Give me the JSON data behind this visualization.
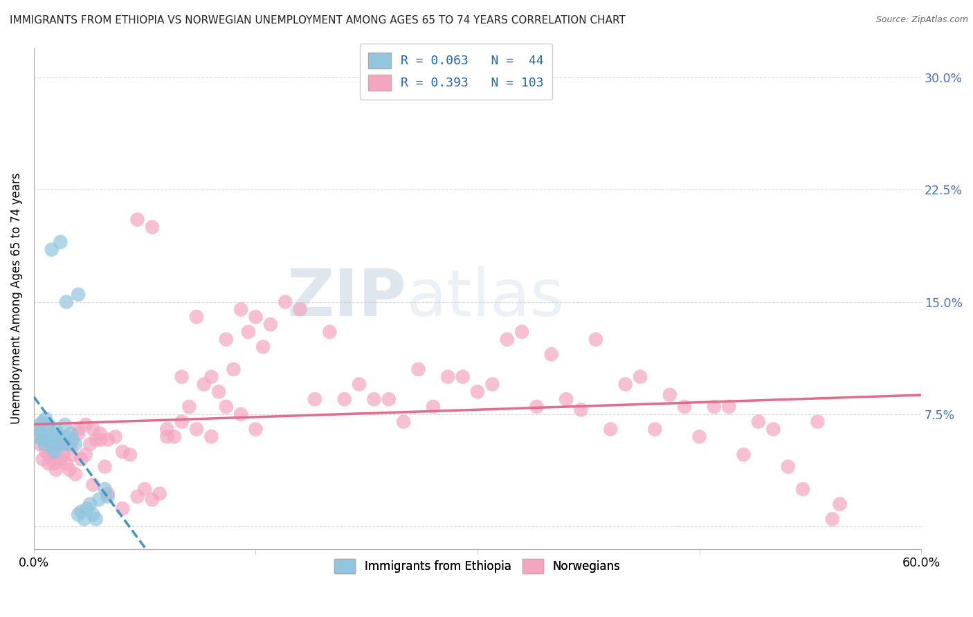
{
  "title": "IMMIGRANTS FROM ETHIOPIA VS NORWEGIAN UNEMPLOYMENT AMONG AGES 65 TO 74 YEARS CORRELATION CHART",
  "source": "Source: ZipAtlas.com",
  "ylabel": "Unemployment Among Ages 65 to 74 years",
  "xlim": [
    0.0,
    0.6
  ],
  "ylim": [
    -0.015,
    0.32
  ],
  "yticks": [
    0.0,
    0.075,
    0.15,
    0.225,
    0.3
  ],
  "ytick_labels": [
    "",
    "7.5%",
    "15.0%",
    "22.5%",
    "30.0%"
  ],
  "xticks": [
    0.0,
    0.15,
    0.3,
    0.45,
    0.6
  ],
  "xtick_labels": [
    "0.0%",
    "",
    "",
    "",
    "60.0%"
  ],
  "legend_labels": [
    "Immigrants from Ethiopia",
    "Norwegians"
  ],
  "legend_r_blue": "R = 0.063",
  "legend_n_blue": "N =  44",
  "legend_r_pink": "R = 0.393",
  "legend_n_pink": "N = 103",
  "blue_color": "#92c5de",
  "pink_color": "#f4a6c0",
  "blue_line_color": "#4393c3",
  "pink_line_color": "#e8698a",
  "watermark_color": "#d0dce8",
  "background_color": "#ffffff",
  "grid_color": "#cccccc",
  "blue_scatter_x": [
    0.002,
    0.003,
    0.004,
    0.005,
    0.006,
    0.006,
    0.007,
    0.008,
    0.008,
    0.009,
    0.01,
    0.01,
    0.011,
    0.012,
    0.013,
    0.014,
    0.015,
    0.015,
    0.016,
    0.017,
    0.018,
    0.019,
    0.02,
    0.021,
    0.022,
    0.023,
    0.024,
    0.025,
    0.026,
    0.028,
    0.03,
    0.032,
    0.034,
    0.036,
    0.038,
    0.04,
    0.042,
    0.044,
    0.048,
    0.05,
    0.012,
    0.018,
    0.022,
    0.03
  ],
  "blue_scatter_y": [
    0.06,
    0.065,
    0.068,
    0.062,
    0.058,
    0.07,
    0.055,
    0.06,
    0.072,
    0.058,
    0.065,
    0.068,
    0.06,
    0.055,
    0.052,
    0.05,
    0.065,
    0.06,
    0.058,
    0.055,
    0.06,
    0.058,
    0.055,
    0.068,
    0.06,
    0.058,
    0.055,
    0.062,
    0.058,
    0.055,
    0.008,
    0.01,
    0.005,
    0.012,
    0.015,
    0.008,
    0.005,
    0.018,
    0.025,
    0.02,
    0.185,
    0.19,
    0.15,
    0.155
  ],
  "pink_scatter_x": [
    0.004,
    0.006,
    0.008,
    0.01,
    0.012,
    0.014,
    0.016,
    0.018,
    0.02,
    0.022,
    0.024,
    0.026,
    0.028,
    0.03,
    0.032,
    0.035,
    0.038,
    0.04,
    0.042,
    0.045,
    0.048,
    0.05,
    0.055,
    0.06,
    0.065,
    0.07,
    0.075,
    0.08,
    0.085,
    0.09,
    0.095,
    0.1,
    0.105,
    0.11,
    0.115,
    0.12,
    0.125,
    0.13,
    0.135,
    0.14,
    0.145,
    0.15,
    0.155,
    0.16,
    0.17,
    0.18,
    0.19,
    0.2,
    0.21,
    0.22,
    0.23,
    0.24,
    0.25,
    0.26,
    0.27,
    0.28,
    0.29,
    0.3,
    0.31,
    0.32,
    0.33,
    0.34,
    0.35,
    0.36,
    0.37,
    0.38,
    0.39,
    0.4,
    0.41,
    0.42,
    0.43,
    0.44,
    0.45,
    0.46,
    0.47,
    0.48,
    0.49,
    0.5,
    0.51,
    0.52,
    0.53,
    0.54,
    0.545,
    0.006,
    0.01,
    0.015,
    0.02,
    0.025,
    0.03,
    0.035,
    0.04,
    0.045,
    0.05,
    0.06,
    0.07,
    0.08,
    0.09,
    0.1,
    0.11,
    0.12,
    0.13,
    0.14,
    0.15
  ],
  "pink_scatter_y": [
    0.055,
    0.058,
    0.05,
    0.048,
    0.045,
    0.042,
    0.05,
    0.045,
    0.055,
    0.042,
    0.038,
    0.048,
    0.035,
    0.062,
    0.045,
    0.068,
    0.055,
    0.065,
    0.058,
    0.062,
    0.04,
    0.058,
    0.06,
    0.05,
    0.048,
    0.02,
    0.025,
    0.018,
    0.022,
    0.065,
    0.06,
    0.1,
    0.08,
    0.14,
    0.095,
    0.1,
    0.09,
    0.125,
    0.105,
    0.145,
    0.13,
    0.14,
    0.12,
    0.135,
    0.15,
    0.145,
    0.085,
    0.13,
    0.085,
    0.095,
    0.085,
    0.085,
    0.07,
    0.105,
    0.08,
    0.1,
    0.1,
    0.09,
    0.095,
    0.125,
    0.13,
    0.08,
    0.115,
    0.085,
    0.078,
    0.125,
    0.065,
    0.095,
    0.1,
    0.065,
    0.088,
    0.08,
    0.06,
    0.08,
    0.08,
    0.048,
    0.07,
    0.065,
    0.04,
    0.025,
    0.07,
    0.005,
    0.015,
    0.045,
    0.042,
    0.038,
    0.048,
    0.055,
    0.065,
    0.048,
    0.028,
    0.058,
    0.022,
    0.012,
    0.205,
    0.2,
    0.06,
    0.07,
    0.065,
    0.06,
    0.08,
    0.075,
    0.065
  ]
}
